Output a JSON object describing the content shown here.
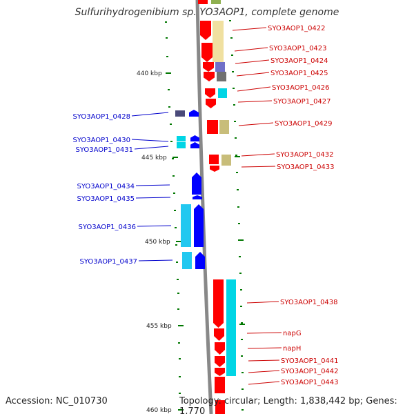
{
  "title": "Sulfurihydrogenibium sp. YO3AOP1, complete genome",
  "footer": {
    "accession": "Accession: NC_010730",
    "topology": "Topology: circular; Length: 1,838,442 bp; Genes: 1,770"
  },
  "scale_labels": [
    "440 kbp",
    "445 kbp",
    "450 kbp",
    "455 kbp",
    "460 kbp"
  ],
  "colors": {
    "forward_label": "#cc0000",
    "reverse_label": "#0000cc",
    "forward_arrow": "#ff0000",
    "reverse_arrow": "#0000ff",
    "cyan": "#00d5e5",
    "khaki": "#c8bd7a",
    "pale_yellow": "#f0e0a0",
    "dark_slate": "#4a4a7a",
    "tick": "#007700",
    "backbone": "#888888"
  },
  "genes_left": [
    "SYO3AOP1_0428",
    "SYO3AOP1_0430",
    "SYO3AOP1_0431",
    "SYO3AOP1_0434",
    "SYO3AOP1_0435",
    "SYO3AOP1_0436",
    "SYO3AOP1_0437"
  ],
  "genes_right": [
    "SYO3AOP1_0422",
    "SYO3AOP1_0423",
    "SYO3AOP1_0424",
    "SYO3AOP1_0425",
    "SYO3AOP1_0426",
    "SYO3AOP1_0427",
    "SYO3AOP1_0429",
    "SYO3AOP1_0432",
    "SYO3AOP1_0433",
    "SYO3AOP1_0438",
    "napG",
    "napH",
    "SYO3AOP1_0441",
    "SYO3AOP1_0442",
    "SYO3AOP1_0443"
  ]
}
